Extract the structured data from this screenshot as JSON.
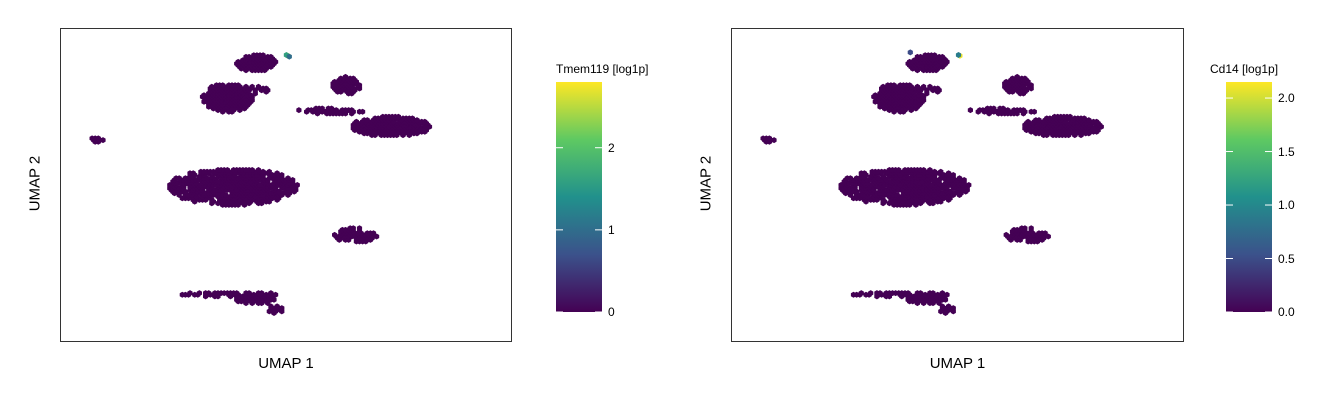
{
  "chart_data": [
    {
      "type": "scatter",
      "subtype": "umap-hexbin",
      "xlabel": "UMAP 1",
      "ylabel": "UMAP 2",
      "legend": {
        "title": "Tmem119 [log1p]",
        "placement": "right",
        "colormap": [
          "#440154",
          "#3b528b",
          "#21918c",
          "#5ec962",
          "#fde725"
        ],
        "range": [
          0,
          2.8
        ],
        "ticks": [
          0,
          1,
          2
        ],
        "tick_labels": [
          "0",
          "1",
          "2"
        ]
      },
      "grid": false,
      "highlight": [
        {
          "x": 0.53,
          "y": 7.0,
          "value": 2.8
        },
        {
          "x": 0.48,
          "y": 7.05,
          "value": 1.6
        },
        {
          "x": 0.58,
          "y": 6.95,
          "value": 1.0
        }
      ]
    },
    {
      "type": "scatter",
      "subtype": "umap-hexbin",
      "xlabel": "UMAP 1",
      "ylabel": "UMAP 2",
      "legend": {
        "title": "Cd14 [log1p]",
        "placement": "right",
        "colormap": [
          "#440154",
          "#3b528b",
          "#21918c",
          "#5ec962",
          "#fde725"
        ],
        "range": [
          0,
          2.15
        ],
        "ticks": [
          0.0,
          0.5,
          1.0,
          1.5,
          2.0
        ],
        "tick_labels": [
          "0.0",
          "0.5",
          "1.0",
          "1.5",
          "2.0"
        ]
      },
      "grid": false,
      "highlight": [
        {
          "x": 0.55,
          "y": 7.0,
          "value": 2.1
        },
        {
          "x": 0.5,
          "y": 7.05,
          "value": 0.9
        },
        {
          "x": -1.2,
          "y": 7.2,
          "value": 0.5
        }
      ]
    }
  ],
  "clusters": [
    {
      "cx": -1.6,
      "cy": 4.5,
      "rx": 0.9,
      "ry": 0.85,
      "density": 0.85
    },
    {
      "cx": -0.7,
      "cy": 5.0,
      "rx": 0.6,
      "ry": 0.25,
      "density": 0.6
    },
    {
      "cx": -0.6,
      "cy": 6.6,
      "rx": 0.7,
      "ry": 0.55,
      "density": 0.85
    },
    {
      "cx": 2.6,
      "cy": 5.2,
      "rx": 0.5,
      "ry": 0.55,
      "density": 0.8
    },
    {
      "cx": 2.0,
      "cy": 3.7,
      "rx": 1.2,
      "ry": 0.18,
      "density": 0.7
    },
    {
      "cx": 4.2,
      "cy": 2.8,
      "rx": 1.4,
      "ry": 0.6,
      "density": 0.85
    },
    {
      "cx": -6.2,
      "cy": 2.0,
      "rx": 0.22,
      "ry": 0.18,
      "density": 0.95
    },
    {
      "cx": -1.4,
      "cy": -0.8,
      "rx": 2.3,
      "ry": 1.1,
      "density": 0.72
    },
    {
      "cx": 2.9,
      "cy": -3.7,
      "rx": 0.8,
      "ry": 0.45,
      "density": 0.7
    },
    {
      "cx": -1.5,
      "cy": -7.2,
      "rx": 1.8,
      "ry": 0.15,
      "density": 0.6
    },
    {
      "cx": -0.6,
      "cy": -7.5,
      "rx": 0.7,
      "ry": 0.3,
      "density": 0.8
    },
    {
      "cx": 0.1,
      "cy": -8.1,
      "rx": 0.35,
      "ry": 0.25,
      "density": 0.9
    }
  ],
  "axis_domain": {
    "x": [
      -7,
      8
    ],
    "y": [
      -9.5,
      8
    ]
  }
}
